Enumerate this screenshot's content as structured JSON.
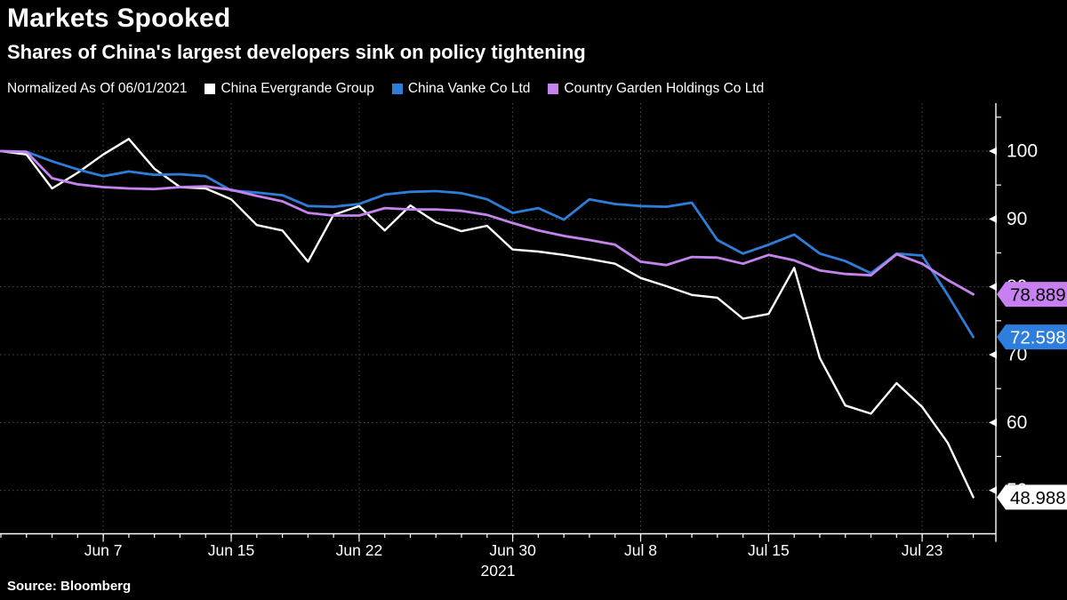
{
  "header": {
    "title": "Markets Spooked",
    "subtitle": "Shares of China's largest developers sink on policy tightening"
  },
  "legend": {
    "note": "Normalized As Of 06/01/2021",
    "items": [
      {
        "label": "China Evergrande Group",
        "color": "#ffffff"
      },
      {
        "label": "China Vanke Co Ltd",
        "color": "#2e7ed8"
      },
      {
        "label": "Country Garden Holdings Co Ltd",
        "color": "#c583ee"
      }
    ]
  },
  "source": "Source: Bloomberg",
  "chart_data": {
    "type": "line",
    "title": "Markets Spooked",
    "normalized_as_of": "06/01/2021",
    "x": [
      "Jun 1",
      "Jun 2",
      "Jun 3",
      "Jun 4",
      "Jun 7",
      "Jun 8",
      "Jun 9",
      "Jun 10",
      "Jun 11",
      "Jun 15",
      "Jun 16",
      "Jun 17",
      "Jun 18",
      "Jun 21",
      "Jun 22",
      "Jun 23",
      "Jun 24",
      "Jun 25",
      "Jun 28",
      "Jun 29",
      "Jun 30",
      "Jul 2",
      "Jul 5",
      "Jul 6",
      "Jul 7",
      "Jul 8",
      "Jul 9",
      "Jul 12",
      "Jul 13",
      "Jul 14",
      "Jul 15",
      "Jul 16",
      "Jul 19",
      "Jul 20",
      "Jul 21",
      "Jul 22",
      "Jul 23",
      "Jul 26",
      "Jul 27"
    ],
    "x_ticks": [
      {
        "index": 4,
        "label": "Jun 7"
      },
      {
        "index": 9,
        "label": "Jun 15"
      },
      {
        "index": 14,
        "label": "Jun 22"
      },
      {
        "index": 20,
        "label": "Jun 30"
      },
      {
        "index": 25,
        "label": "Jul 8"
      },
      {
        "index": 30,
        "label": "Jul 15"
      },
      {
        "index": 36,
        "label": "Jul 23"
      }
    ],
    "year_label": "2021",
    "yticks_major": [
      100,
      90,
      80,
      70,
      60,
      50
    ],
    "yticks_minor": [
      105,
      95,
      85,
      75,
      65,
      55
    ],
    "ylim": [
      43.5,
      107
    ],
    "grid": true,
    "legend_position": "top",
    "series": [
      {
        "name": "China Evergrande Group",
        "color": "#ffffff",
        "end_label": "48.988",
        "end_value": 48.988,
        "tag_bg": "#ffffff",
        "tag_text_color": "#000000",
        "values": [
          100,
          99.5,
          94.5,
          96.8,
          99.5,
          101.8,
          97.4,
          94.7,
          94.5,
          92.9,
          89.1,
          88.3,
          83.7,
          90.6,
          91.9,
          88.3,
          92.0,
          89.5,
          88.2,
          89.0,
          85.5,
          85.2,
          84.7,
          84.1,
          83.4,
          81.3,
          80.1,
          78.8,
          78.4,
          75.3,
          76.0,
          82.8,
          69.5,
          62.5,
          61.3,
          65.8,
          62.3,
          57.0,
          48.988
        ]
      },
      {
        "name": "China Vanke Co Ltd",
        "color": "#2e7ed8",
        "end_label": "72.598",
        "end_value": 72.598,
        "tag_bg": "#2e7fdd",
        "tag_text_color": "#ffffff",
        "values": [
          100,
          99.9,
          98.5,
          97.3,
          96.3,
          97.0,
          96.5,
          96.6,
          96.3,
          94.2,
          93.9,
          93.5,
          91.9,
          91.8,
          92.2,
          93.6,
          94.0,
          94.1,
          93.8,
          92.9,
          90.9,
          91.6,
          89.9,
          92.9,
          92.2,
          91.9,
          91.8,
          92.4,
          86.9,
          84.9,
          86.2,
          87.7,
          84.9,
          83.8,
          82.0,
          84.9,
          84.6,
          78.8,
          72.598
        ]
      },
      {
        "name": "Country Garden Holdings Co Ltd",
        "color": "#c583ee",
        "end_label": "78.889",
        "end_value": 78.889,
        "tag_bg": "#c77ff2",
        "tag_text_color": "#000000",
        "values": [
          100,
          99.9,
          96.0,
          95.1,
          94.7,
          94.5,
          94.4,
          94.7,
          94.8,
          94.3,
          93.4,
          92.6,
          90.9,
          90.5,
          90.5,
          91.6,
          91.4,
          91.4,
          91.2,
          90.6,
          89.4,
          88.3,
          87.5,
          86.9,
          86.2,
          83.7,
          83.2,
          84.4,
          84.3,
          83.4,
          84.7,
          83.9,
          82.4,
          81.9,
          81.7,
          84.8,
          83.4,
          81.0,
          78.889
        ]
      }
    ]
  }
}
